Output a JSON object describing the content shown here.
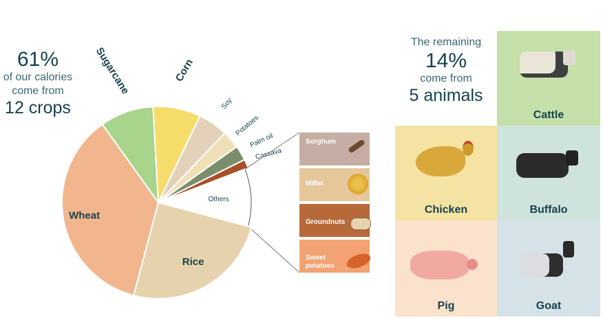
{
  "left_stat": {
    "percent": "61%",
    "line1": "of our calories",
    "line2": "come from",
    "crops": "12 crops"
  },
  "right_stat": {
    "line1": "The remaining",
    "percent": "14%",
    "line2": "come from",
    "animals": "5 animals"
  },
  "chart_data": {
    "type": "pie",
    "slices": [
      {
        "label": "Sugarcane",
        "value": 9,
        "color": "#a8d48c"
      },
      {
        "label": "Corn",
        "value": 8,
        "color": "#f6dc6a"
      },
      {
        "label": "Soy",
        "value": 5,
        "color": "#e3d1b9"
      },
      {
        "label": "Potatoes",
        "value": 3,
        "color": "#f0e0b8"
      },
      {
        "label": "Palm oil",
        "value": 2.5,
        "color": "#7b8e6b"
      },
      {
        "label": "Cassava",
        "value": 1.5,
        "color": "#a9502a"
      },
      {
        "label": "Others",
        "value": 10,
        "color": "#ffffff"
      },
      {
        "label": "Rice",
        "value": 25,
        "color": "#e6d3ad"
      },
      {
        "label": "Wheat",
        "value": 36,
        "color": "#f2b68e"
      }
    ],
    "others_breakdown": [
      {
        "label": "Sorghum",
        "color": "#c6ada3"
      },
      {
        "label": "Millet",
        "color": "#e6c79a"
      },
      {
        "label": "Groundnuts",
        "color": "#b76939"
      },
      {
        "label": "Sweet potatoes",
        "color": "#f2a273"
      }
    ]
  },
  "animals": [
    {
      "name": "Cattle",
      "color": "#c5e0a8"
    },
    {
      "name": "Chicken",
      "color": "#f4e3a2"
    },
    {
      "name": "Buffalo",
      "color": "#cfe3dd"
    },
    {
      "name": "Pig",
      "color": "#fbe2cc"
    },
    {
      "name": "Goat",
      "color": "#d5e3e8"
    }
  ]
}
